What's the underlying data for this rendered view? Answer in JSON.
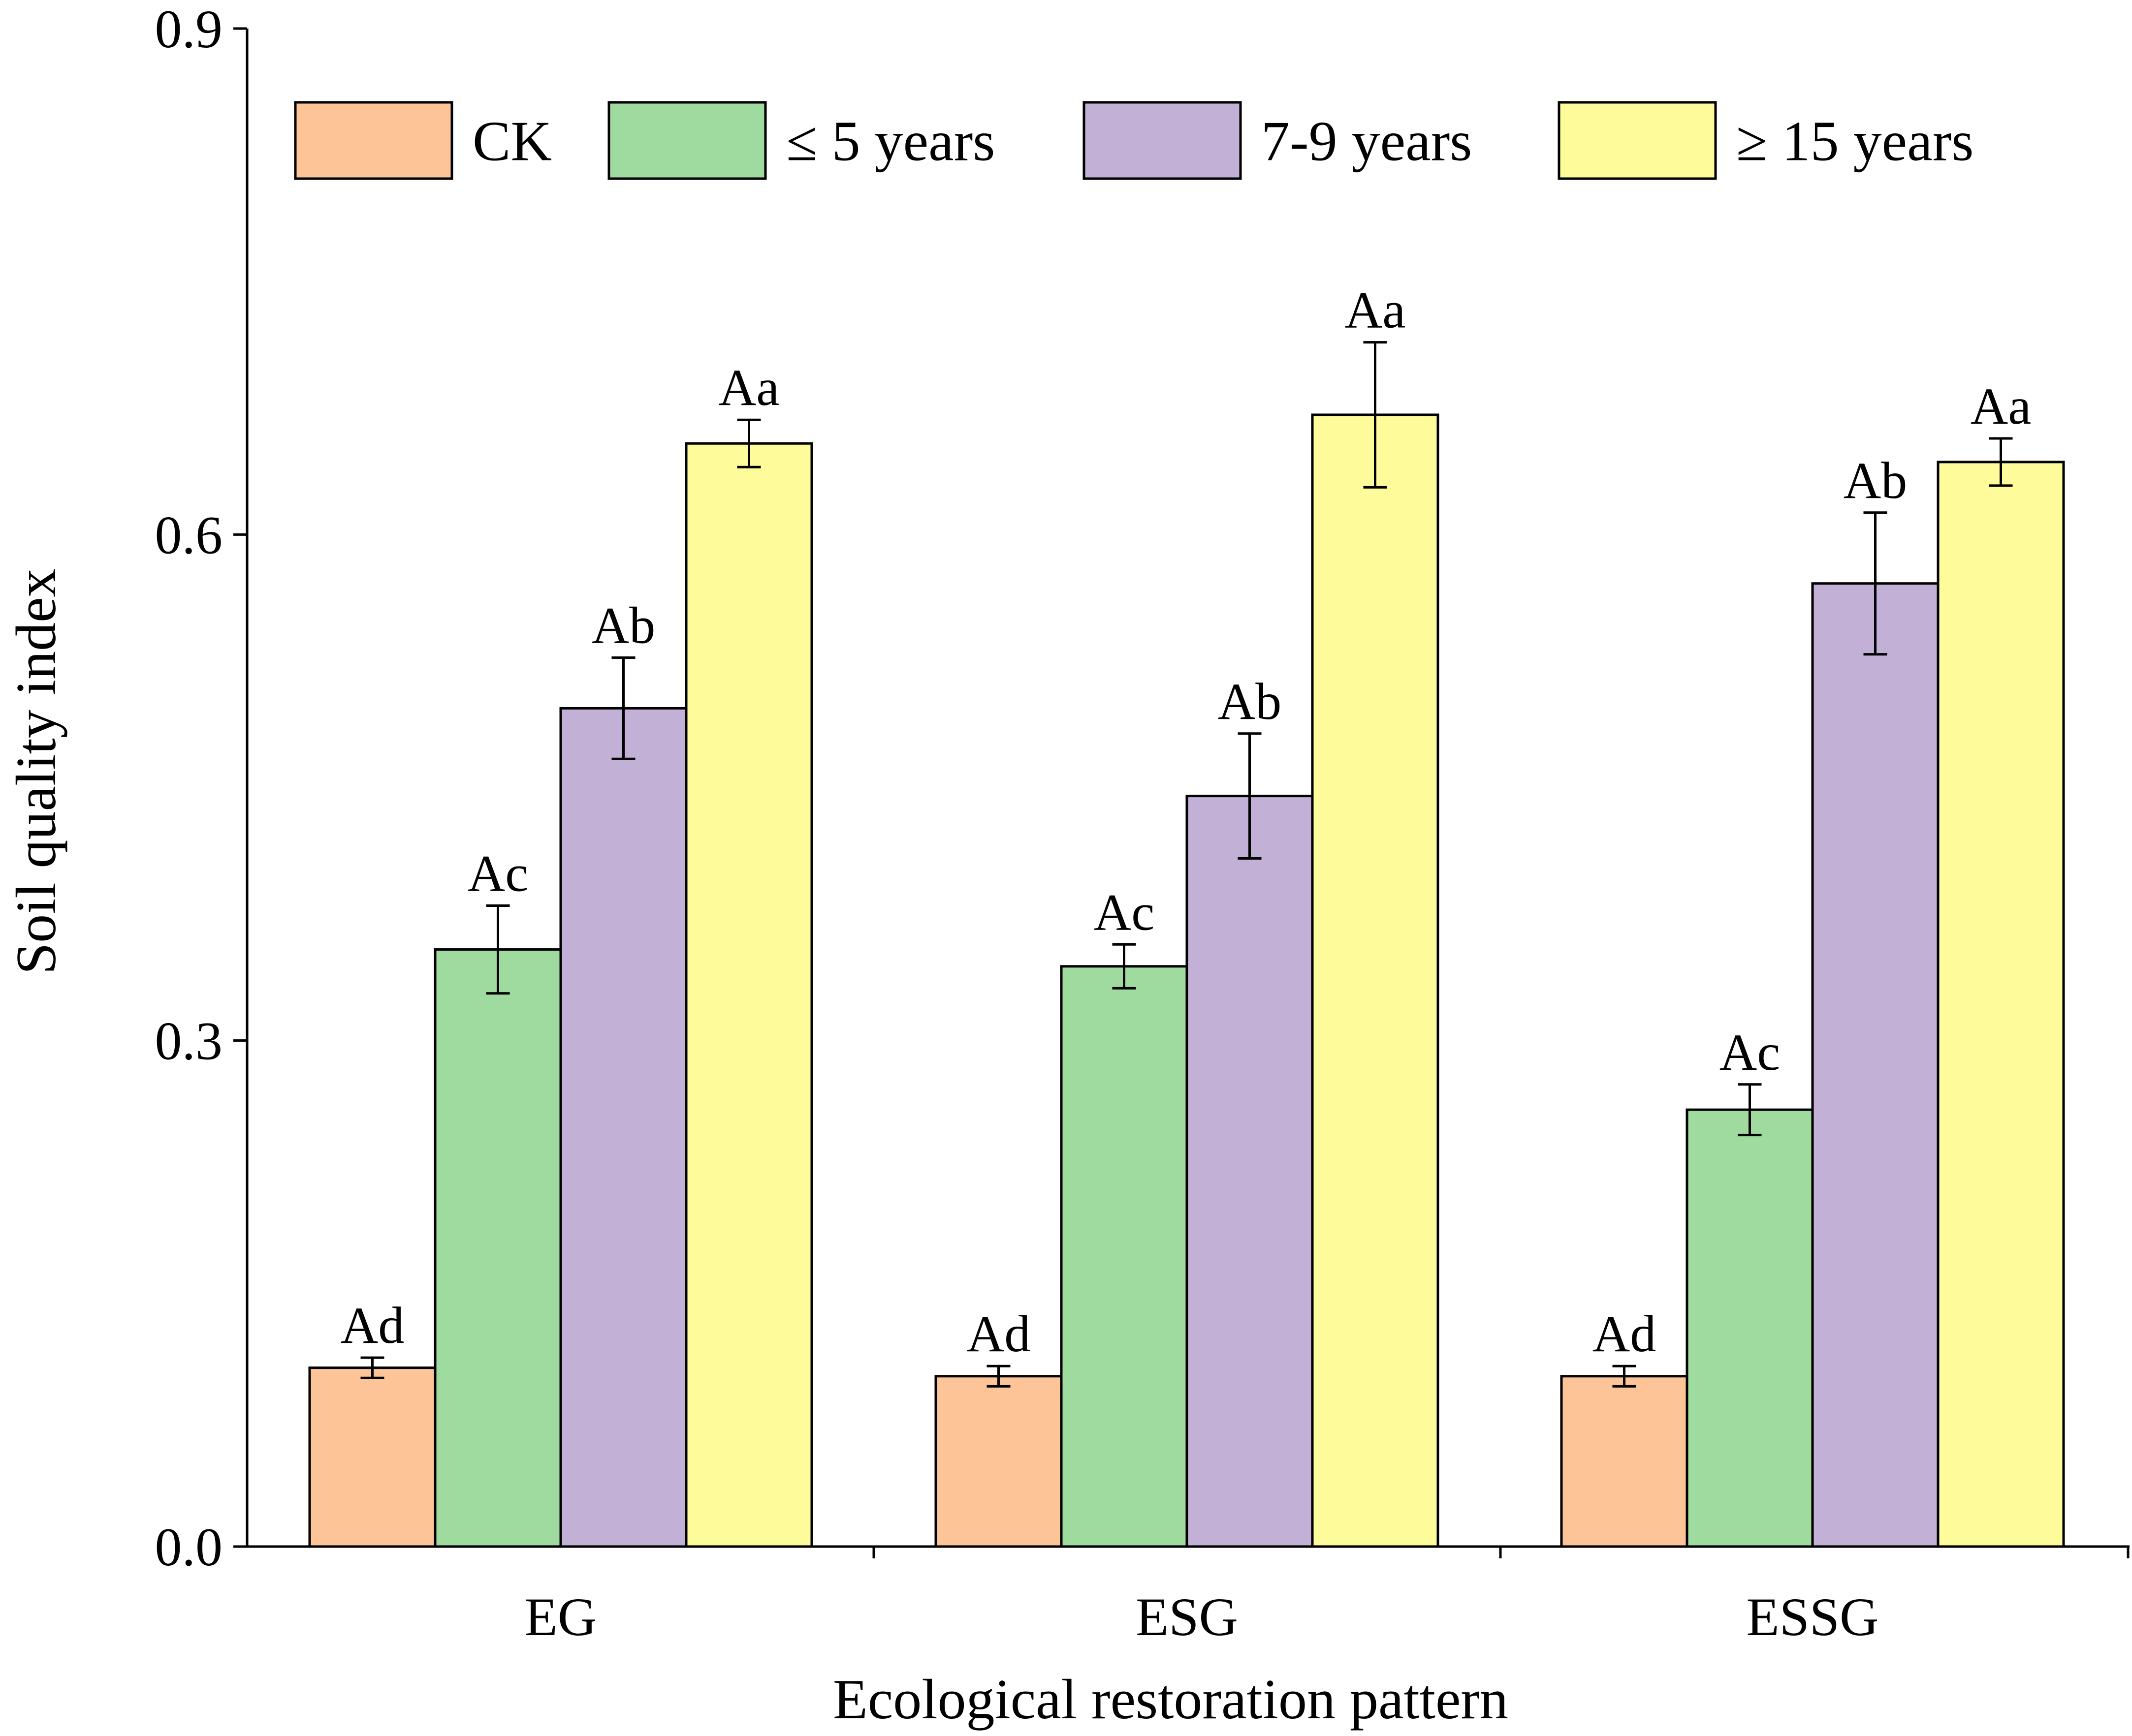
{
  "chart_data": {
    "type": "bar",
    "title": "",
    "xlabel": "Ecological restoration pattern",
    "ylabel": "Soil quality index",
    "ylim": [
      0,
      0.9
    ],
    "yticks": [
      "0.0",
      "0.3",
      "0.6",
      "0.9"
    ],
    "ytick_values": [
      0,
      0.3,
      0.6,
      0.9
    ],
    "categories": [
      "EG",
      "ESG",
      "ESSG"
    ],
    "legend_position": "top",
    "series": [
      {
        "name": "CK",
        "color": "#FDC597",
        "values": [
          0.106,
          0.101,
          0.101
        ],
        "errors": [
          0.006,
          0.006,
          0.006
        ],
        "labels": [
          "Ad",
          "Ad",
          "Ad"
        ]
      },
      {
        "name": "≤ 5 years",
        "color": "#9FDB9F",
        "values": [
          0.354,
          0.344,
          0.259
        ],
        "errors": [
          0.026,
          0.013,
          0.015
        ],
        "labels": [
          "Ac",
          "Ac",
          "Ac"
        ]
      },
      {
        "name": "7-9 years",
        "color": "#C2B0D6",
        "values": [
          0.497,
          0.445,
          0.571
        ],
        "errors": [
          0.03,
          0.037,
          0.042
        ],
        "labels": [
          "Ab",
          "Ab",
          "Ab"
        ]
      },
      {
        "name": "≥ 15 years",
        "color": "#FEFC9A",
        "values": [
          0.654,
          0.671,
          0.643
        ],
        "errors": [
          0.014,
          0.043,
          0.014
        ],
        "labels": [
          "Aa",
          "Aa",
          "Aa"
        ]
      }
    ]
  }
}
